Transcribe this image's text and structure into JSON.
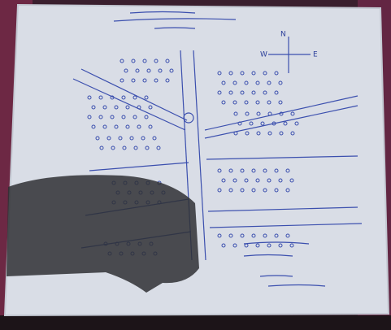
{
  "image": {
    "compass": {
      "north": "N",
      "west": "W",
      "east": "E"
    }
  }
}
